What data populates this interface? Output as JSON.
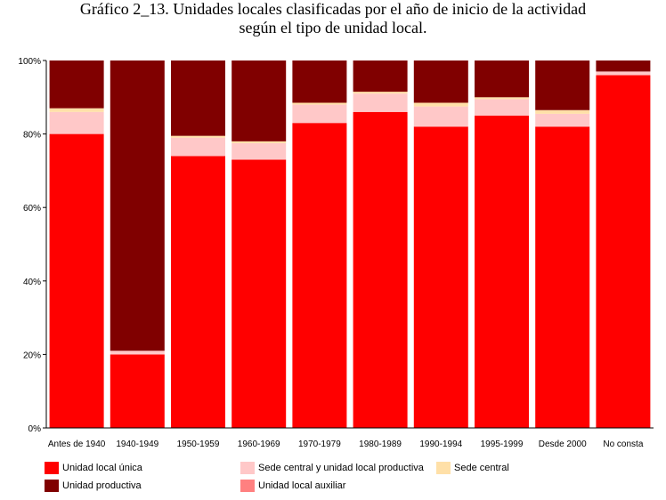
{
  "chart_data": {
    "type": "bar",
    "stacked": true,
    "title_lines": [
      "Gráfico 2_13. Unidades locales clasificadas por el año de inicio de la actividad",
      "según el tipo de unidad local."
    ],
    "categories": [
      "Antes de 1940",
      "1940-1949",
      "1950-1959",
      "1960-1969",
      "1970-1979",
      "1980-1989",
      "1990-1994",
      "1995-1999",
      "Desde 2000",
      "No consta"
    ],
    "ylim": [
      0,
      100
    ],
    "y_ticks": [
      "0%",
      "20%",
      "40%",
      "60%",
      "80%",
      "100%"
    ],
    "grid": false,
    "legend_position": "bottom",
    "series": [
      {
        "name": "Unidad local única",
        "color": "#ff0000",
        "values": [
          80,
          20,
          74,
          73,
          83,
          86,
          82,
          85,
          82,
          96
        ]
      },
      {
        "name": "Sede central y unidad local productiva",
        "color": "#ffc8c8",
        "values": [
          6,
          1,
          5,
          4.5,
          5,
          5,
          5.5,
          4.5,
          3.5,
          1
        ]
      },
      {
        "name": "Sede central",
        "color": "#ffe0a8",
        "values": [
          1,
          0,
          0.5,
          0.5,
          0.5,
          0.5,
          1,
          0.5,
          1,
          0
        ]
      },
      {
        "name": "Unidad productiva",
        "color": "#800000",
        "values": [
          13,
          79,
          20.5,
          22,
          11.5,
          8.5,
          11.5,
          10,
          13.5,
          3
        ]
      },
      {
        "name": "Unidad local auxiliar",
        "color": "#ff8080",
        "values": [
          0,
          0,
          0,
          0,
          0,
          0,
          0,
          0,
          0,
          0
        ]
      }
    ]
  }
}
